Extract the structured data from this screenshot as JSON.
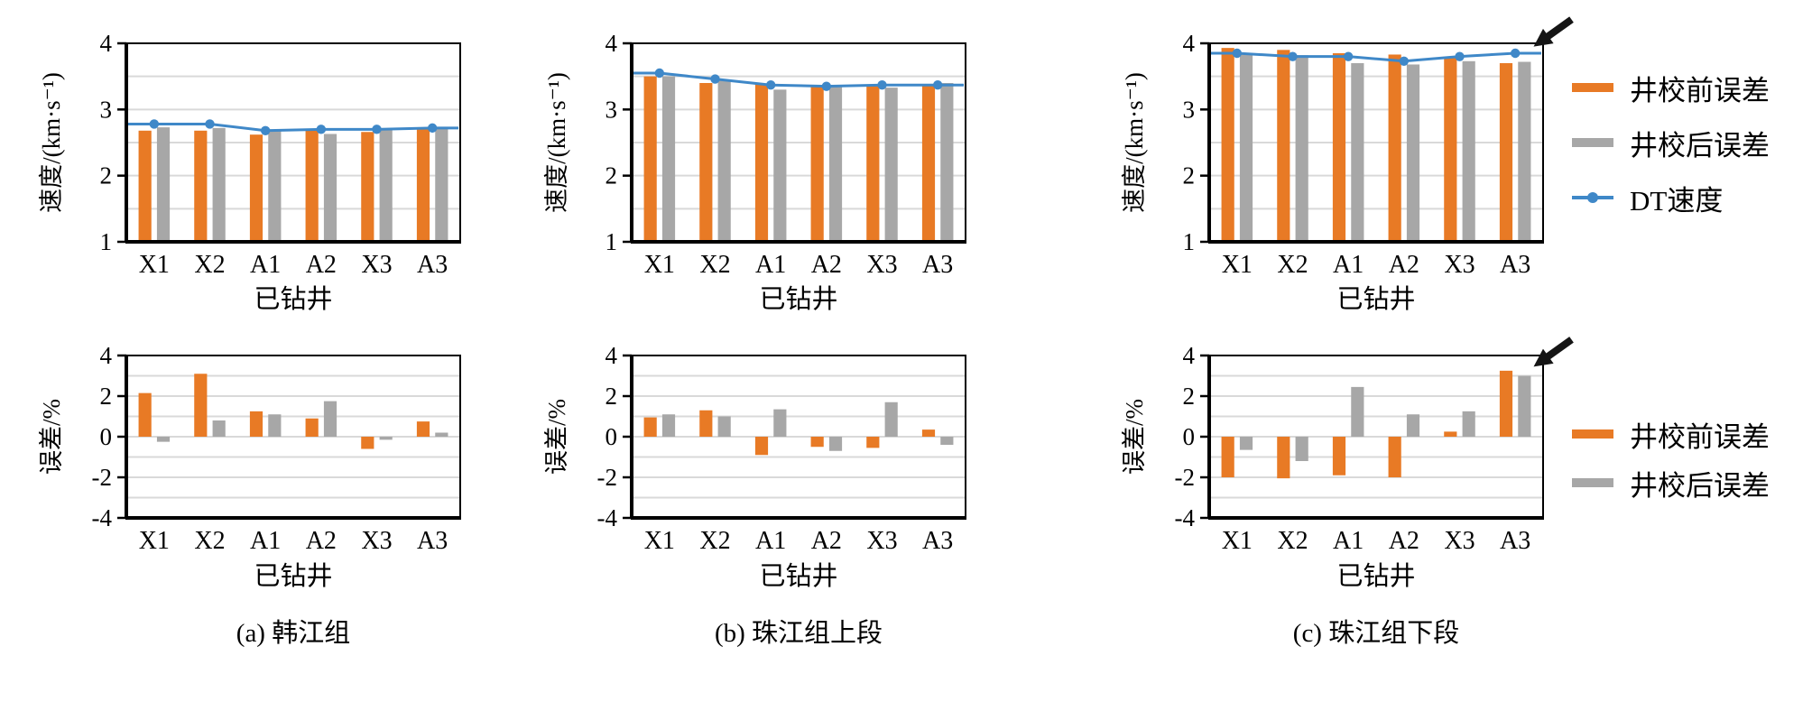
{
  "figure": {
    "colors": {
      "pre": "#E87A25",
      "post": "#A7A7A7",
      "dt": "#3F88C8",
      "grid": "#D9D9D9",
      "axis": "#000000",
      "arrow": "#151515"
    },
    "legend_top": [
      {
        "label": "井校前误差",
        "swatch": "pre",
        "kind": "bar"
      },
      {
        "label": "井校后误差",
        "swatch": "post",
        "kind": "bar"
      },
      {
        "label": "DT速度",
        "swatch": "dt",
        "kind": "line"
      }
    ],
    "legend_bottom": [
      {
        "label": "井校前误差",
        "swatch": "pre",
        "kind": "bar"
      },
      {
        "label": "井校后误差",
        "swatch": "post",
        "kind": "bar"
      }
    ]
  },
  "chart_data": [
    {
      "id": "velocity-a",
      "position": "top-left",
      "type": "bar",
      "categories": [
        "X1",
        "X2",
        "A1",
        "A2",
        "X3",
        "A3"
      ],
      "xlabel": "已钻井",
      "ylabel": "速度/(km·s⁻¹)",
      "ylim": [
        1,
        4
      ],
      "yticks": [
        1,
        2,
        3,
        4
      ],
      "grid_step": 0.5,
      "bar_base": 1,
      "caption": null,
      "arrow": null,
      "series": [
        {
          "name": "井校前误差",
          "type": "bar",
          "color_key": "pre",
          "values": [
            2.68,
            2.68,
            2.62,
            2.69,
            2.66,
            2.7
          ]
        },
        {
          "name": "井校后误差",
          "type": "bar",
          "color_key": "post",
          "values": [
            2.73,
            2.72,
            2.67,
            2.63,
            2.7,
            2.72
          ]
        },
        {
          "name": "DT速度",
          "type": "line",
          "color_key": "dt",
          "values": [
            2.78,
            2.78,
            2.68,
            2.7,
            2.7,
            2.72
          ]
        }
      ]
    },
    {
      "id": "velocity-b",
      "position": "top-middle",
      "type": "bar",
      "categories": [
        "X1",
        "X2",
        "A1",
        "A2",
        "X3",
        "A3"
      ],
      "xlabel": "已钻井",
      "ylabel": "速度/(km·s⁻¹)",
      "ylim": [
        1,
        4
      ],
      "yticks": [
        1,
        2,
        3,
        4
      ],
      "grid_step": 0.5,
      "bar_base": 1,
      "caption": null,
      "arrow": null,
      "series": [
        {
          "name": "井校前误差",
          "type": "bar",
          "color_key": "pre",
          "values": [
            3.5,
            3.4,
            3.38,
            3.34,
            3.37,
            3.37
          ]
        },
        {
          "name": "井校后误差",
          "type": "bar",
          "color_key": "post",
          "values": [
            3.5,
            3.45,
            3.3,
            3.36,
            3.33,
            3.4
          ]
        },
        {
          "name": "DT速度",
          "type": "line",
          "color_key": "dt",
          "values": [
            3.55,
            3.46,
            3.37,
            3.35,
            3.37,
            3.37
          ]
        }
      ]
    },
    {
      "id": "velocity-c",
      "position": "top-right",
      "type": "bar",
      "categories": [
        "X1",
        "X2",
        "A1",
        "A2",
        "X3",
        "A3"
      ],
      "xlabel": "已钻井",
      "ylabel": "速度/(km·s⁻¹)",
      "ylim": [
        1,
        4
      ],
      "yticks": [
        1,
        2,
        3,
        4
      ],
      "grid_step": 0.5,
      "bar_base": 1,
      "caption": null,
      "arrow": {
        "x_cat": "A3",
        "y_value": 3.95
      },
      "series": [
        {
          "name": "井校前误差",
          "type": "bar",
          "color_key": "pre",
          "values": [
            3.93,
            3.9,
            3.85,
            3.83,
            3.78,
            3.7
          ]
        },
        {
          "name": "井校后误差",
          "type": "bar",
          "color_key": "post",
          "values": [
            3.85,
            3.82,
            3.7,
            3.68,
            3.73,
            3.72
          ]
        },
        {
          "name": "DT速度",
          "type": "line",
          "color_key": "dt",
          "values": [
            3.85,
            3.8,
            3.8,
            3.73,
            3.8,
            3.85
          ]
        }
      ]
    },
    {
      "id": "error-a",
      "position": "bottom-left",
      "type": "bar",
      "categories": [
        "X1",
        "X2",
        "A1",
        "A2",
        "X3",
        "A3"
      ],
      "xlabel": "已钻井",
      "ylabel": "误差/%",
      "ylim": [
        -4,
        4
      ],
      "yticks": [
        -4,
        -2,
        0,
        2,
        4
      ],
      "grid_step": 1,
      "bar_base": 0,
      "caption": "(a) 韩江组",
      "arrow": null,
      "series": [
        {
          "name": "井校前误差",
          "type": "bar",
          "color_key": "pre",
          "values": [
            2.15,
            3.1,
            1.25,
            0.9,
            -0.6,
            0.75
          ]
        },
        {
          "name": "井校后误差",
          "type": "bar",
          "color_key": "post",
          "values": [
            -0.25,
            0.8,
            1.1,
            1.75,
            -0.15,
            0.2
          ]
        }
      ]
    },
    {
      "id": "error-b",
      "position": "bottom-middle",
      "type": "bar",
      "categories": [
        "X1",
        "X2",
        "A1",
        "A2",
        "X3",
        "A3"
      ],
      "xlabel": "已钻井",
      "ylabel": "误差/%",
      "ylim": [
        -4,
        4
      ],
      "yticks": [
        -4,
        -2,
        0,
        2,
        4
      ],
      "grid_step": 1,
      "bar_base": 0,
      "caption": "(b) 珠江组上段",
      "arrow": null,
      "series": [
        {
          "name": "井校前误差",
          "type": "bar",
          "color_key": "pre",
          "values": [
            0.95,
            1.3,
            -0.9,
            -0.5,
            -0.55,
            0.35
          ]
        },
        {
          "name": "井校后误差",
          "type": "bar",
          "color_key": "post",
          "values": [
            1.1,
            1.0,
            1.35,
            -0.7,
            1.7,
            -0.4
          ]
        }
      ]
    },
    {
      "id": "error-c",
      "position": "bottom-right",
      "type": "bar",
      "categories": [
        "X1",
        "X2",
        "A1",
        "A2",
        "X3",
        "A3"
      ],
      "xlabel": "已钻井",
      "ylabel": "误差/%",
      "ylim": [
        -4,
        4
      ],
      "yticks": [
        -4,
        -2,
        0,
        2,
        4
      ],
      "grid_step": 1,
      "bar_base": 0,
      "caption": "(c) 珠江组下段",
      "arrow": {
        "x_cat": "A3",
        "y_value": 3.45
      },
      "series": [
        {
          "name": "井校前误差",
          "type": "bar",
          "color_key": "pre",
          "values": [
            -2.0,
            -2.05,
            -1.9,
            -2.0,
            0.25,
            3.25
          ]
        },
        {
          "name": "井校后误差",
          "type": "bar",
          "color_key": "post",
          "values": [
            -0.65,
            -1.2,
            2.45,
            1.1,
            1.25,
            3.0
          ]
        }
      ]
    }
  ]
}
